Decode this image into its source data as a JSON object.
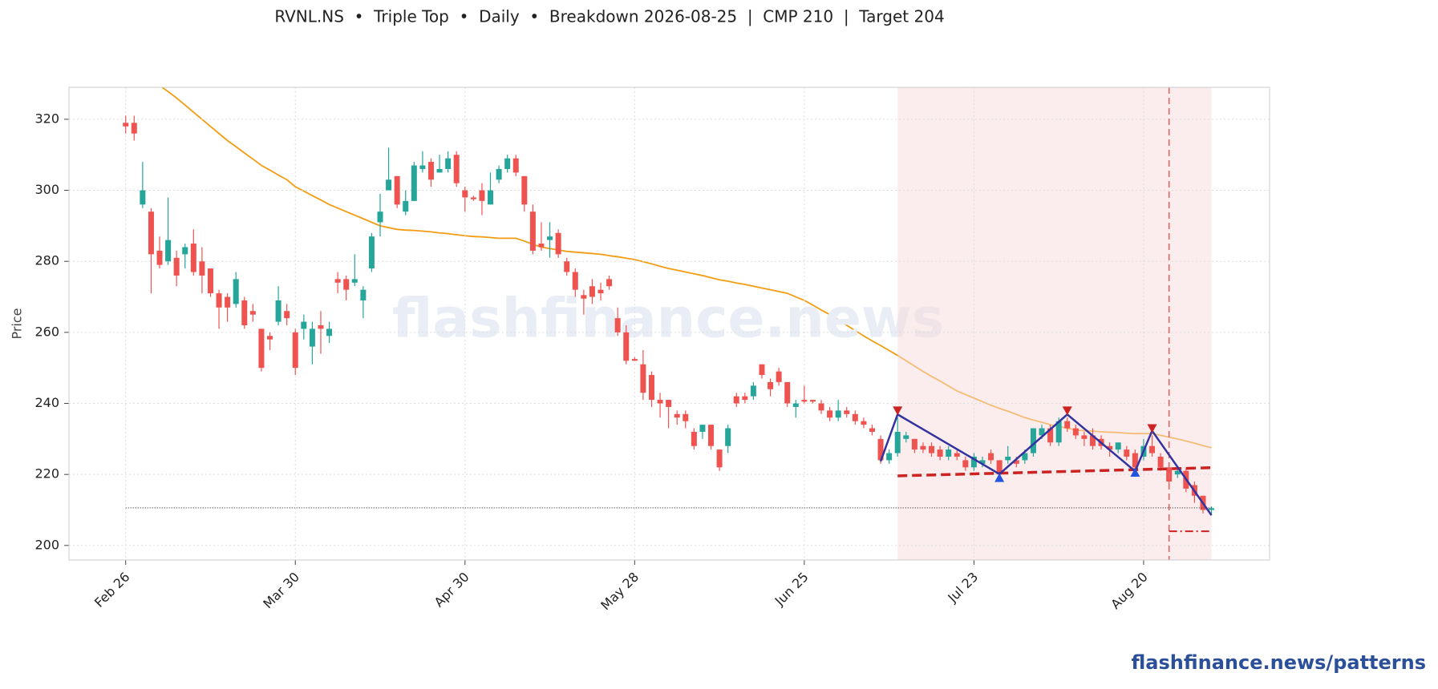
{
  "chart_data": {
    "type": "candlestick",
    "title": "RVNL.NS  •  Triple Top  •  Daily  •  Breakdown 2026-08-25  |  CMP 210  |  Target 204",
    "y_label": "Price",
    "watermark": "flashfinance.news",
    "footer": "flashfinance.news/patterns",
    "ylim": [
      195.9,
      329
    ],
    "yticks": [
      200,
      220,
      240,
      260,
      280,
      300,
      320
    ],
    "grid": true,
    "up_color": "#26a69a",
    "down_color": "#ef5350",
    "categories": [
      "Feb 26",
      null,
      null,
      null,
      null,
      null,
      null,
      null,
      null,
      null,
      null,
      null,
      null,
      null,
      null,
      null,
      null,
      null,
      null,
      null,
      "Mar 30",
      null,
      null,
      null,
      null,
      null,
      null,
      null,
      null,
      null,
      null,
      null,
      null,
      null,
      null,
      null,
      null,
      null,
      null,
      null,
      "Apr 30",
      null,
      null,
      null,
      null,
      null,
      null,
      null,
      null,
      null,
      null,
      null,
      null,
      null,
      null,
      null,
      null,
      null,
      null,
      null,
      "May 28",
      null,
      null,
      null,
      null,
      null,
      null,
      null,
      null,
      null,
      null,
      null,
      null,
      null,
      null,
      null,
      null,
      null,
      null,
      null,
      "Jun 25",
      null,
      null,
      null,
      null,
      null,
      null,
      null,
      null,
      null,
      null,
      null,
      null,
      null,
      null,
      null,
      null,
      null,
      null,
      null,
      "Jul 23",
      null,
      null,
      null,
      null,
      null,
      null,
      null,
      null,
      null,
      null,
      null,
      null,
      null,
      null,
      null,
      null,
      null,
      null,
      null,
      "Aug 20",
      null,
      null,
      null,
      null,
      null,
      null,
      null,
      null
    ],
    "open": [
      319,
      319,
      296,
      294,
      283,
      280,
      281,
      282,
      285,
      280,
      278,
      271,
      270,
      268,
      269,
      266,
      261,
      259,
      263,
      266,
      260,
      261,
      256,
      262,
      259,
      275,
      275,
      274,
      269,
      278,
      291,
      300,
      304,
      294,
      297,
      306,
      308,
      305,
      306,
      310,
      300,
      298,
      300,
      296,
      303,
      306,
      309,
      304,
      294,
      285,
      286,
      288,
      280,
      277,
      270.5,
      273,
      272,
      275,
      264,
      260,
      252.5,
      251,
      248,
      241,
      241,
      237,
      237,
      232,
      232,
      234,
      227,
      228,
      242,
      242,
      242,
      251,
      246,
      249,
      246,
      239,
      241,
      241,
      240,
      238,
      236,
      238,
      237,
      235,
      233,
      230,
      224,
      226,
      230,
      230,
      228,
      228,
      227,
      225,
      226,
      224,
      222,
      223,
      226,
      224,
      224,
      224,
      224,
      226,
      231,
      233,
      229,
      235,
      233,
      231,
      231,
      230,
      228,
      227,
      227,
      226,
      225,
      228,
      225,
      222,
      220,
      221,
      217,
      214,
      210
    ],
    "high": [
      321,
      321,
      308,
      295,
      287,
      298,
      283,
      285,
      289,
      284,
      278,
      272,
      271,
      277,
      270,
      268,
      261,
      260,
      273,
      268,
      261,
      265,
      263,
      266,
      263,
      277,
      276,
      282,
      273,
      288,
      299,
      312,
      304,
      300,
      308,
      311,
      309,
      310,
      311,
      311,
      301,
      298.5,
      302,
      305,
      307,
      310,
      310,
      304,
      296,
      291,
      291,
      289,
      281,
      278,
      272,
      275,
      274,
      276,
      267,
      262,
      253,
      255,
      249,
      243,
      241,
      238,
      238,
      233,
      234,
      234,
      227,
      234,
      243,
      243,
      246,
      251,
      247,
      250,
      246,
      241,
      245,
      241,
      241,
      239,
      241,
      239,
      238,
      236,
      234,
      231,
      227,
      236,
      232,
      230,
      229,
      229,
      228,
      228,
      227,
      225,
      226,
      225,
      227,
      224,
      228,
      225,
      227,
      233,
      234,
      234,
      236,
      236,
      234,
      232,
      233,
      231,
      229,
      229,
      228,
      227,
      230,
      231,
      226,
      223,
      222,
      222,
      218,
      214,
      211
    ],
    "low": [
      316,
      314,
      295,
      271,
      278,
      279,
      273,
      278,
      276,
      271,
      270,
      261,
      263,
      267,
      261,
      263,
      249,
      255,
      262,
      262,
      248,
      258,
      251,
      254,
      257,
      271,
      269,
      273,
      264,
      277,
      287,
      300,
      295,
      293,
      297,
      305,
      301,
      305,
      305,
      301,
      294,
      297,
      293,
      296,
      302,
      305,
      304,
      294,
      282,
      283,
      281,
      281,
      276,
      270,
      265,
      268,
      269,
      272,
      259,
      251,
      252,
      241,
      239,
      236,
      233,
      234,
      233,
      227,
      230,
      227,
      221,
      226,
      239,
      240,
      241,
      247,
      242,
      245,
      239,
      236,
      240,
      240,
      237,
      235,
      235,
      236,
      234,
      233,
      231,
      223,
      223,
      225,
      229,
      226,
      226,
      225,
      224,
      224,
      224,
      221,
      221,
      222,
      223,
      219,
      223,
      222,
      223,
      225,
      230,
      228,
      228,
      232,
      230,
      228,
      227,
      227,
      225,
      226,
      224,
      221,
      224,
      225,
      221,
      217,
      219,
      215,
      212,
      209,
      209
    ],
    "close": [
      318,
      316,
      300,
      282,
      279,
      286,
      276,
      284,
      277,
      276,
      271,
      267,
      267,
      275,
      262,
      265,
      250,
      258,
      269,
      264,
      250,
      263,
      261,
      261,
      261,
      274,
      272,
      275,
      272,
      287,
      294,
      303,
      296,
      297,
      307,
      307,
      303,
      306,
      309,
      302,
      298,
      297.5,
      297,
      300,
      306,
      309,
      305,
      296,
      283,
      284,
      287,
      282,
      277,
      272,
      269.5,
      270,
      271,
      273,
      260,
      252,
      252,
      243,
      241,
      240,
      239,
      236,
      235,
      228,
      234,
      228,
      222,
      233,
      240,
      241,
      245,
      248,
      244,
      246,
      240,
      240,
      240.5,
      240.5,
      238,
      236,
      238,
      237,
      235,
      234,
      232,
      224,
      226,
      232,
      231,
      227,
      227,
      226,
      225,
      227,
      225,
      222,
      225,
      224,
      224,
      220,
      225,
      223,
      226,
      233,
      233,
      229,
      235,
      233,
      231,
      230,
      228,
      228,
      227,
      229,
      225,
      222,
      228,
      226,
      222,
      218,
      221,
      216,
      214,
      210,
      210.5
    ],
    "ma": {
      "color": "#f39c12",
      "values": [
        null,
        null,
        null,
        null,
        329.5,
        327.8,
        326,
        324,
        322,
        320,
        318,
        316,
        314,
        312.3,
        310.5,
        308.8,
        307,
        305.7,
        304.3,
        303,
        301,
        299.8,
        298.5,
        297.3,
        296,
        295,
        294,
        293,
        292,
        291,
        290,
        289.5,
        289,
        288.8,
        288.7,
        288.5,
        288.3,
        288,
        287.8,
        287.5,
        287.2,
        287,
        286.9,
        286.7,
        286.5,
        286.5,
        286.5,
        285.7,
        284.8,
        284,
        283.6,
        283.2,
        282.8,
        282.6,
        282.4,
        282.2,
        282,
        281.6,
        281.3,
        280.9,
        280.5,
        279.9,
        279.3,
        278.6,
        278,
        277.5,
        277,
        276.5,
        276,
        275.4,
        274.8,
        274.4,
        273.9,
        273.5,
        273,
        272.5,
        272,
        271.5,
        271,
        270,
        269,
        267.7,
        266.3,
        265,
        263.5,
        262,
        260.5,
        259,
        257.6,
        256.3,
        254.9,
        253.5,
        252,
        250.5,
        249,
        247.6,
        246.3,
        244.9,
        243.5,
        242.5,
        241.5,
        240.5,
        239.5,
        238.6,
        237.8,
        236.9,
        236,
        235.3,
        234.7,
        234,
        233.5,
        233,
        232.5,
        232.3,
        232.2,
        232,
        231.9,
        231.8,
        231.6,
        231.5,
        231.5,
        231.5,
        231,
        230.5,
        230,
        229.4,
        228.8,
        228.1,
        227.5
      ]
    },
    "pattern": {
      "shade": [
        91,
        128
      ],
      "shade_color": "#f8dcdc",
      "zigzag": {
        "color": "#3333a0",
        "x": [
          89,
          91,
          103,
          111,
          119,
          121,
          128
        ],
        "y": [
          223.7,
          236.9,
          220.1,
          236.9,
          220.9,
          232.3,
          208.5
        ]
      },
      "peaks": {
        "color": "#cc2222",
        "x": [
          91,
          111,
          121
        ],
        "y": [
          238,
          238,
          233
        ]
      },
      "troughs": {
        "color": "#2255dd",
        "x": [
          103,
          119
        ],
        "y": [
          219,
          220.5
        ]
      },
      "neckline": {
        "color": "#cc2222",
        "x": [
          91,
          128
        ],
        "y": [
          219.6,
          221.9
        ]
      },
      "breakdown_x": 123,
      "breakdown_color": "#e06666",
      "target": {
        "color": "#cc2222",
        "x": [
          123,
          128
        ],
        "y": 204
      },
      "cmp": {
        "color": "#444444",
        "x": [
          0,
          128
        ],
        "y": 210.6
      }
    }
  }
}
